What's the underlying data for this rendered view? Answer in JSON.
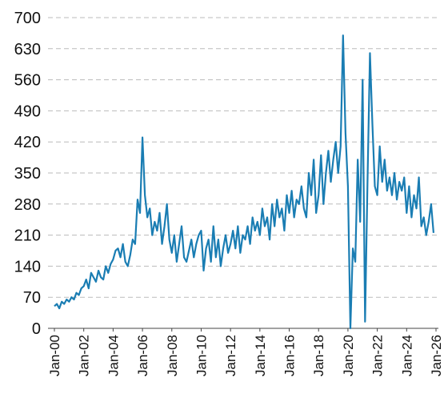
{
  "chart_data": {
    "type": "line",
    "x": [
      "2000-01",
      "2000-03",
      "2000-05",
      "2000-07",
      "2000-09",
      "2000-11",
      "2001-01",
      "2001-03",
      "2001-05",
      "2001-07",
      "2001-09",
      "2001-11",
      "2002-01",
      "2002-03",
      "2002-05",
      "2002-07",
      "2002-09",
      "2002-11",
      "2003-01",
      "2003-03",
      "2003-05",
      "2003-07",
      "2003-09",
      "2003-11",
      "2004-01",
      "2004-03",
      "2004-05",
      "2004-07",
      "2004-09",
      "2004-11",
      "2005-01",
      "2005-03",
      "2005-05",
      "2005-07",
      "2005-09",
      "2005-11",
      "2006-01",
      "2006-03",
      "2006-05",
      "2006-07",
      "2006-09",
      "2006-11",
      "2007-01",
      "2007-03",
      "2007-05",
      "2007-07",
      "2007-09",
      "2007-11",
      "2008-01",
      "2008-03",
      "2008-05",
      "2008-07",
      "2008-09",
      "2008-11",
      "2009-01",
      "2009-03",
      "2009-05",
      "2009-07",
      "2009-09",
      "2009-11",
      "2010-01",
      "2010-03",
      "2010-05",
      "2010-07",
      "2010-09",
      "2010-11",
      "2011-01",
      "2011-03",
      "2011-05",
      "2011-07",
      "2011-09",
      "2011-11",
      "2012-01",
      "2012-03",
      "2012-05",
      "2012-07",
      "2012-09",
      "2012-11",
      "2013-01",
      "2013-03",
      "2013-05",
      "2013-07",
      "2013-09",
      "2013-11",
      "2014-01",
      "2014-03",
      "2014-05",
      "2014-07",
      "2014-09",
      "2014-11",
      "2015-01",
      "2015-03",
      "2015-05",
      "2015-07",
      "2015-09",
      "2015-11",
      "2016-01",
      "2016-03",
      "2016-05",
      "2016-07",
      "2016-09",
      "2016-11",
      "2017-01",
      "2017-03",
      "2017-05",
      "2017-07",
      "2017-09",
      "2017-11",
      "2018-01",
      "2018-03",
      "2018-05",
      "2018-07",
      "2018-09",
      "2018-11",
      "2019-01",
      "2019-03",
      "2019-05",
      "2019-07",
      "2019-09",
      "2019-11",
      "2020-01",
      "2020-03",
      "2020-05",
      "2020-07",
      "2020-09",
      "2020-11",
      "2021-01",
      "2021-03",
      "2021-05",
      "2021-07",
      "2021-09",
      "2021-11",
      "2022-01",
      "2022-03",
      "2022-05",
      "2022-07",
      "2022-09",
      "2022-11",
      "2023-01",
      "2023-03",
      "2023-05",
      "2023-07",
      "2023-09",
      "2023-11",
      "2024-01",
      "2024-03",
      "2024-05",
      "2024-07",
      "2024-09",
      "2024-11",
      "2025-01",
      "2025-03",
      "2025-05",
      "2025-07",
      "2025-09",
      "2025-11"
    ],
    "values": [
      50,
      55,
      45,
      60,
      55,
      65,
      60,
      70,
      65,
      80,
      75,
      90,
      95,
      110,
      90,
      125,
      115,
      105,
      130,
      115,
      110,
      140,
      125,
      145,
      155,
      175,
      180,
      160,
      190,
      150,
      140,
      165,
      200,
      190,
      290,
      260,
      430,
      300,
      250,
      270,
      210,
      240,
      220,
      260,
      190,
      230,
      280,
      200,
      170,
      210,
      150,
      190,
      230,
      160,
      150,
      175,
      200,
      160,
      190,
      210,
      220,
      130,
      180,
      200,
      150,
      230,
      160,
      200,
      140,
      180,
      210,
      170,
      190,
      220,
      180,
      230,
      170,
      210,
      200,
      230,
      190,
      250,
      220,
      240,
      210,
      270,
      230,
      250,
      200,
      280,
      230,
      290,
      250,
      270,
      220,
      300,
      260,
      310,
      250,
      290,
      280,
      320,
      270,
      250,
      350,
      300,
      380,
      260,
      300,
      390,
      280,
      350,
      400,
      330,
      380,
      420,
      350,
      410,
      660,
      440,
      320,
      0,
      180,
      150,
      380,
      240,
      560,
      15,
      330,
      620,
      460,
      320,
      300,
      410,
      330,
      380,
      310,
      340,
      300,
      350,
      290,
      330,
      310,
      340,
      260,
      320,
      250,
      300,
      270,
      340,
      230,
      250,
      210,
      240,
      280,
      215
    ],
    "color": "#1a7db3",
    "xlim": [
      "2000-01",
      "2026-01"
    ],
    "xticks": [
      {
        "value": "2000-01",
        "label": "Jan-00"
      },
      {
        "value": "2002-01",
        "label": "Jan-02"
      },
      {
        "value": "2004-01",
        "label": "Jan-04"
      },
      {
        "value": "2006-01",
        "label": "Jan-06"
      },
      {
        "value": "2008-01",
        "label": "Jan-08"
      },
      {
        "value": "2010-01",
        "label": "Jan-10"
      },
      {
        "value": "2012-01",
        "label": "Jan-12"
      },
      {
        "value": "2014-01",
        "label": "Jan-14"
      },
      {
        "value": "2016-01",
        "label": "Jan-16"
      },
      {
        "value": "2018-01",
        "label": "Jan-18"
      },
      {
        "value": "2020-01",
        "label": "Jan-20"
      },
      {
        "value": "2022-01",
        "label": "Jan-22"
      },
      {
        "value": "2024-01",
        "label": "Jan-24"
      },
      {
        "value": "2026-01",
        "label": "Jan-26"
      }
    ],
    "ylim": [
      0,
      700
    ],
    "yticks": [
      0,
      70,
      140,
      210,
      280,
      350,
      420,
      490,
      560,
      630,
      700
    ],
    "grid": true
  }
}
